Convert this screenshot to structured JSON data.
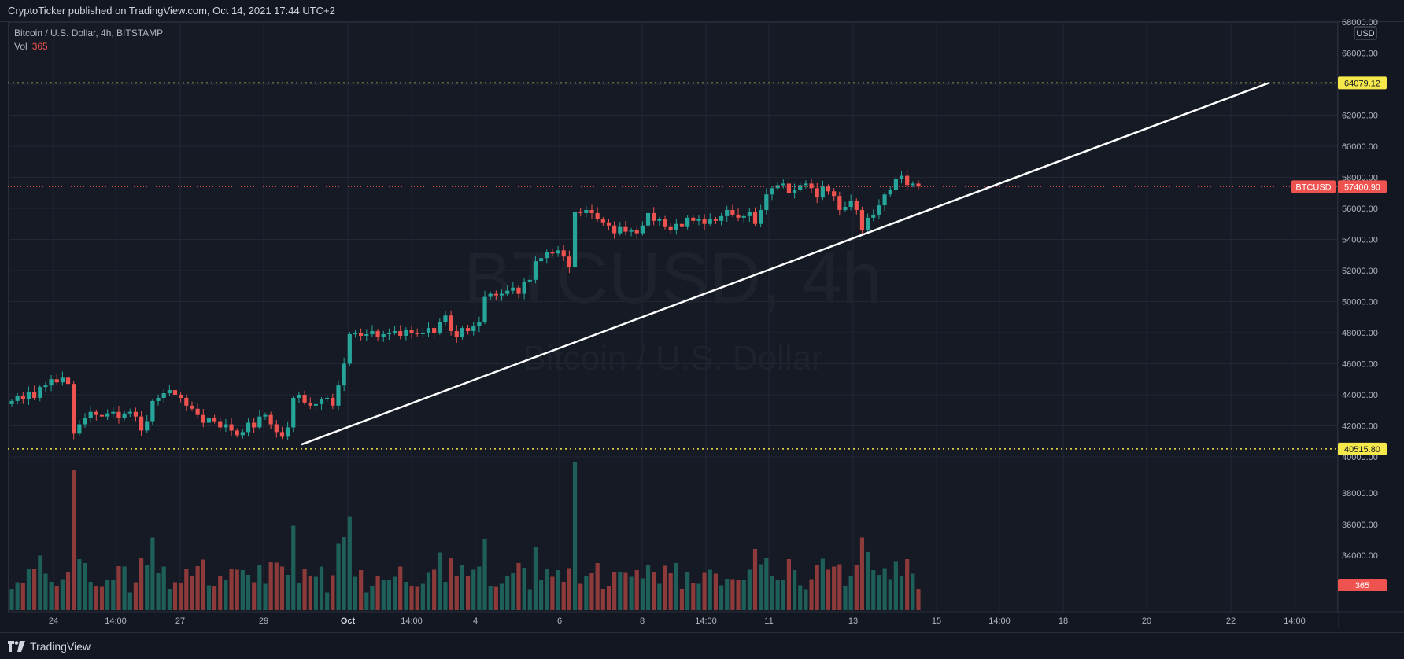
{
  "header": {
    "publisher": "CryptoTicker published on TradingView.com, Oct 14, 2021 17:44 UTC+2"
  },
  "legend": {
    "symbol_line": "Bitcoin / U.S. Dollar, 4h, BITSTAMP",
    "vol_label": "Vol",
    "vol_value": "365"
  },
  "watermark": {
    "symbol": "BTCUSD, 4h",
    "name": "Bitcoin / U.S. Dollar"
  },
  "axis": {
    "currency": "USD",
    "price_ticks": [
      "68000.00",
      "66000.00",
      "64000.00",
      "62000.00",
      "60000.00",
      "58000.00",
      "56000.00",
      "54000.00",
      "52000.00",
      "50000.00",
      "48000.00",
      "46000.00",
      "44000.00",
      "42000.00",
      "40000.00"
    ],
    "volume_ticks": [
      "38000.00",
      "36000.00",
      "34000.00",
      "32000.00"
    ],
    "time_ticks": [
      "24",
      "14:00",
      "27",
      "29",
      "Oct",
      "14:00",
      "4",
      "6",
      "8",
      "14:00",
      "11",
      "13",
      "15",
      "14:00",
      "18",
      "20",
      "22",
      "14:00"
    ]
  },
  "levels": {
    "upper": "64079.12",
    "lower": "40515.80",
    "symbol_tag": "BTCUSD",
    "last_price": "57400.90",
    "volume_tag": "365"
  },
  "footer": {
    "brand": "TradingView"
  },
  "colors": {
    "up": "#26a69a",
    "down": "#ef5350",
    "vol_up": "#1f5f5a",
    "vol_down": "#8d3a3a",
    "level": "#f5e84b",
    "trend": "#ffffff",
    "grid": "#232733"
  },
  "chart_data": {
    "type": "candlestick",
    "title": "Bitcoin / U.S. Dollar, 4h, BITSTAMP",
    "ylim": [
      40000,
      68000
    ],
    "candles_close": [
      43600,
      43900,
      43700,
      44200,
      43800,
      44500,
      44600,
      45000,
      44800,
      45100,
      44700,
      41500,
      42100,
      42500,
      42900,
      42700,
      42600,
      42800,
      42900,
      42500,
      42800,
      42900,
      42600,
      41700,
      42300,
      43600,
      43800,
      44100,
      44300,
      44000,
      43800,
      43300,
      43100,
      42700,
      42200,
      42500,
      42300,
      41900,
      42100,
      41700,
      41400,
      41600,
      42200,
      41900,
      42600,
      42700,
      42100,
      41600,
      41300,
      41900,
      43800,
      44000,
      43500,
      43300,
      43400,
      43700,
      43800,
      43300,
      44600,
      46000,
      47900,
      48000,
      47800,
      47900,
      48100,
      47700,
      47900,
      48000,
      48100,
      47800,
      48200,
      48000,
      47900,
      48000,
      48300,
      48000,
      48700,
      49100,
      48100,
      47700,
      48300,
      48100,
      48400,
      48700,
      50300,
      50500,
      50400,
      50500,
      50700,
      50900,
      50500,
      51300,
      51400,
      52600,
      52800,
      53200,
      53100,
      53300,
      52900,
      52200,
      55800,
      55700,
      55900,
      55700,
      55300,
      55100,
      54900,
      54400,
      54800,
      54500,
      54600,
      54400,
      54900,
      55700,
      55200,
      55300,
      54800,
      54600,
      55000,
      54800,
      55400,
      55200,
      55300,
      55000,
      55300,
      55200,
      55500,
      55900,
      55600,
      55400,
      55500,
      55800,
      55000,
      55900,
      56900,
      57300,
      57500,
      57600,
      57000,
      57200,
      57500,
      57600,
      57300,
      56700,
      57400,
      57100,
      56800,
      55900,
      56100,
      56500,
      55900,
      54600,
      55400,
      55600,
      56200,
      56900,
      57200,
      57900,
      58100,
      57500,
      57600,
      57400
    ]
  }
}
